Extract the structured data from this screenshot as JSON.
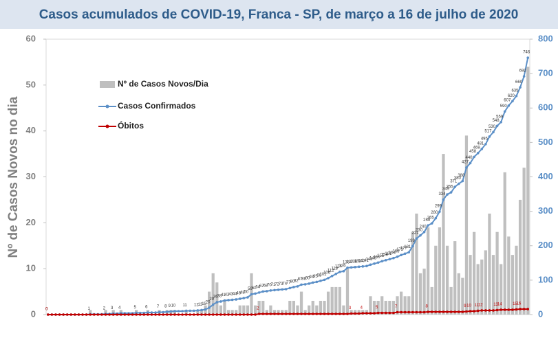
{
  "chart_data": {
    "type": "bar-line",
    "title": "Casos acumulados de COVID-19, Franca - SP, de março a 16 de julho de 2020",
    "ylabel": "Nº de Casos Novos no dia",
    "categories": [
      null,
      null,
      null,
      null,
      null,
      null,
      null,
      null,
      null,
      null,
      null,
      null,
      null,
      null,
      null,
      null,
      null,
      null,
      null,
      null,
      null,
      null,
      null,
      null,
      null,
      null,
      null,
      null,
      null,
      null,
      null,
      null,
      null,
      null,
      null,
      null,
      null,
      null,
      null,
      null,
      null,
      null,
      null,
      null,
      null,
      null,
      null,
      null,
      null,
      null,
      null,
      null,
      null,
      null,
      null,
      null,
      null,
      null,
      null,
      null,
      null,
      null,
      null,
      null,
      null,
      null,
      null,
      null,
      null,
      null,
      null,
      null,
      null,
      null,
      null,
      null,
      null,
      null,
      null,
      null,
      null,
      null,
      null,
      null,
      null,
      null,
      null,
      null,
      null,
      null,
      null,
      null,
      null,
      null,
      null,
      null,
      null,
      null,
      null,
      null,
      null,
      null,
      null,
      null,
      null,
      null,
      null,
      null,
      null,
      null,
      null,
      null,
      null,
      null,
      null,
      null,
      null,
      null,
      null,
      null,
      null,
      null,
      null,
      null,
      null,
      null
    ],
    "ylim": [
      0,
      60
    ],
    "yticks": [
      0,
      10,
      20,
      30,
      40,
      50,
      60
    ],
    "y2lim": [
      0,
      800
    ],
    "y2ticks": [
      0,
      100,
      200,
      300,
      400,
      500,
      600,
      700,
      800
    ],
    "legend": "upper left",
    "series": [
      {
        "name": "Nº de Casos Novos/Dia",
        "type": "bar",
        "color": "#bfbfbf",
        "values": [
          0,
          0,
          0,
          0,
          0,
          0,
          0,
          0,
          0,
          0,
          0,
          1,
          0,
          0,
          0,
          1,
          0,
          1,
          0,
          1,
          0,
          0,
          0,
          1,
          0,
          0,
          1,
          0,
          0,
          1,
          0,
          1,
          1,
          1,
          0,
          0,
          1,
          0,
          0,
          1,
          1,
          2,
          5,
          9,
          7,
          2,
          3,
          1,
          1,
          1,
          2,
          2,
          2,
          9,
          2,
          3,
          3,
          1,
          2,
          1,
          1,
          1,
          1,
          3,
          3,
          2,
          5,
          1,
          2,
          3,
          2,
          3,
          3,
          5,
          6,
          6,
          6,
          2,
          10,
          1,
          1,
          1,
          1,
          1,
          4,
          3,
          3,
          4,
          3,
          3,
          3,
          4,
          5,
          4,
          4,
          18,
          22,
          9,
          10,
          19,
          6,
          15,
          19,
          35,
          15,
          6,
          16,
          9,
          8,
          39,
          13,
          18,
          11,
          12,
          14,
          22,
          13,
          18,
          11,
          31,
          17,
          13,
          15,
          25,
          32,
          54
        ]
      },
      {
        "name": "Casos Confirmados",
        "type": "line",
        "axis": "y2",
        "color": "#5b8fc7",
        "values": [
          0,
          0,
          0,
          0,
          0,
          0,
          0,
          0,
          0,
          0,
          0,
          1,
          1,
          1,
          1,
          2,
          2,
          3,
          3,
          4,
          4,
          4,
          4,
          5,
          5,
          5,
          6,
          6,
          6,
          7,
          7,
          8,
          9,
          10,
          10,
          10,
          11,
          11,
          11,
          12,
          13,
          15,
          20,
          29,
          36,
          38,
          41,
          42,
          43,
          44,
          46,
          48,
          50,
          59,
          61,
          64,
          67,
          68,
          70,
          71,
          72,
          73,
          74,
          77,
          80,
          82,
          87,
          88,
          90,
          93,
          95,
          98,
          101,
          106,
          112,
          118,
          124,
          126,
          136,
          137,
          138,
          139,
          140,
          141,
          145,
          148,
          151,
          155,
          158,
          161,
          164,
          168,
          173,
          177,
          181,
          199,
          221,
          230,
          240,
          259,
          265,
          280,
          299,
          334,
          349,
          355,
          371,
          380,
          388,
          427,
          440,
          458,
          469,
          481,
          495,
          517,
          530,
          548,
          559,
          590,
          607,
          620,
          635,
          660,
          692,
          746
        ]
      },
      {
        "name": "Óbitos",
        "type": "line",
        "axis": "y2",
        "color": "#c00000",
        "values": [
          0,
          0,
          0,
          0,
          0,
          0,
          0,
          0,
          0,
          0,
          0,
          0,
          0,
          0,
          0,
          0,
          0,
          0,
          0,
          0,
          0,
          0,
          0,
          0,
          0,
          0,
          0,
          0,
          0,
          0,
          0,
          0,
          0,
          0,
          0,
          0,
          0,
          0,
          0,
          0,
          0,
          0,
          0,
          0,
          0,
          0,
          0,
          0,
          0,
          0,
          0,
          0,
          0,
          0,
          0,
          2,
          2,
          2,
          2,
          2,
          2,
          2,
          2,
          2,
          2,
          2,
          2,
          2,
          2,
          2,
          2,
          2,
          2,
          2,
          2,
          2,
          2,
          2,
          2,
          3,
          3,
          3,
          4,
          4,
          4,
          4,
          5,
          5,
          5,
          5,
          5,
          7,
          7,
          7,
          7,
          7,
          7,
          7,
          7,
          8,
          8,
          8,
          8,
          8,
          8,
          8,
          8,
          8,
          8,
          9,
          10,
          10,
          11,
          12,
          12,
          12,
          12,
          13,
          14,
          14,
          14,
          14,
          15,
          16,
          16,
          16
        ]
      }
    ]
  }
}
